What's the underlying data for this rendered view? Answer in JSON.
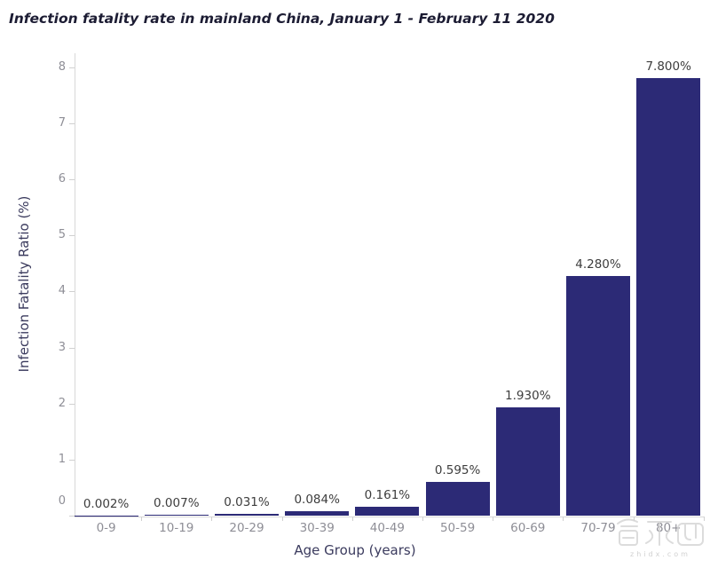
{
  "chart_data": {
    "type": "bar",
    "title": "Infection fatality rate in mainland China, January 1 - February 11 2020",
    "xlabel": "Age Group (years)",
    "ylabel": "Infection Fatality Ratio (%)",
    "categories": [
      "0-9",
      "10-19",
      "20-29",
      "30-39",
      "40-49",
      "50-59",
      "60-69",
      "70-79",
      "80+"
    ],
    "values": [
      0.002,
      0.007,
      0.031,
      0.084,
      0.161,
      0.595,
      1.93,
      4.28,
      7.8
    ],
    "value_labels": [
      "0.002%",
      "0.007%",
      "0.031%",
      "0.084%",
      "0.161%",
      "0.595%",
      "1.930%",
      "4.280%",
      "7.800%"
    ],
    "yticks": [
      0,
      1,
      2,
      3,
      4,
      5,
      6,
      7,
      8
    ],
    "ylim": [
      0,
      8.25
    ],
    "grid": false,
    "legend": "none",
    "colors": {
      "bar": "#2c2a76",
      "title": "#1c1c33",
      "axis_title": "#3b3b5e",
      "tick_label": "#8e8e96",
      "value_label": "#3d3d3d",
      "axis_line": "#d8d8d8",
      "watermark": "#cfcfcf"
    }
  },
  "watermark": {
    "logo": "智东西",
    "url": "zhidx.com"
  }
}
